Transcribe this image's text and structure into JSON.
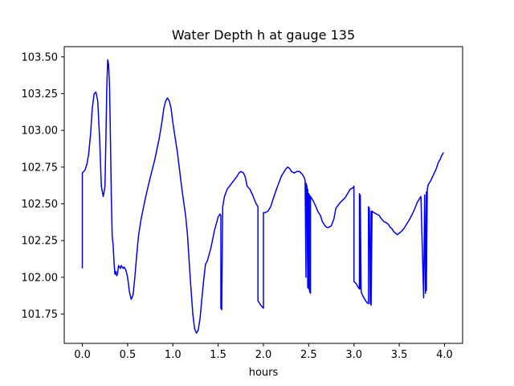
{
  "chart_data": {
    "type": "line",
    "title": "Water Depth h at gauge 135",
    "xlabel": "hours",
    "ylabel": "",
    "xlim": [
      -0.2,
      4.2
    ],
    "ylim": [
      101.55,
      103.57
    ],
    "xticks": [
      0.0,
      0.5,
      1.0,
      1.5,
      2.0,
      2.5,
      3.0,
      3.5,
      4.0
    ],
    "xtick_labels": [
      "0.0",
      "0.5",
      "1.0",
      "1.5",
      "2.0",
      "2.5",
      "3.0",
      "3.5",
      "4.0"
    ],
    "yticks": [
      101.75,
      102.0,
      102.25,
      102.5,
      102.75,
      103.0,
      103.25,
      103.5
    ],
    "ytick_labels": [
      "101.75",
      "102.00",
      "102.25",
      "102.50",
      "102.75",
      "103.00",
      "103.25",
      "103.50"
    ],
    "grid": false,
    "legend": "none",
    "colors": {
      "line": "#0000ff",
      "axes": "#000000",
      "background": "#ffffff"
    },
    "series": [
      {
        "x": [
          0.0,
          0.0,
          0.0,
          0.03,
          0.05,
          0.07,
          0.09,
          0.11,
          0.13,
          0.15,
          0.17,
          0.19,
          0.21,
          0.23,
          0.24,
          0.25,
          0.26,
          0.27,
          0.28,
          0.29,
          0.3,
          0.31,
          0.32,
          0.33,
          0.34,
          0.35,
          0.36,
          0.37,
          0.38,
          0.39,
          0.4,
          0.41,
          0.42,
          0.43,
          0.44,
          0.45,
          0.46,
          0.47,
          0.48,
          0.5,
          0.52,
          0.54,
          0.56,
          0.58,
          0.6,
          0.62,
          0.65,
          0.7,
          0.75,
          0.8,
          0.85,
          0.88,
          0.9,
          0.92,
          0.94,
          0.96,
          0.98,
          1.0,
          1.05,
          1.1,
          1.14,
          1.16,
          1.18,
          1.2,
          1.22,
          1.24,
          1.26,
          1.28,
          1.3,
          1.32,
          1.34,
          1.36,
          1.38,
          1.42,
          1.46,
          1.5,
          1.52,
          1.53,
          1.53,
          1.54,
          1.54,
          1.55,
          1.57,
          1.6,
          1.65,
          1.7,
          1.73,
          1.75,
          1.78,
          1.8,
          1.82,
          1.85,
          1.88,
          1.9,
          1.92,
          1.94,
          1.94,
          1.97,
          2.0,
          2.0,
          2.02,
          2.05,
          2.08,
          2.1,
          2.15,
          2.2,
          2.25,
          2.27,
          2.29,
          2.31,
          2.34,
          2.37,
          2.4,
          2.43,
          2.45,
          2.46,
          2.47,
          2.47,
          2.48,
          2.49,
          2.49,
          2.5,
          2.5,
          2.51,
          2.51,
          2.52,
          2.52,
          2.53,
          2.55,
          2.58,
          2.6,
          2.63,
          2.65,
          2.68,
          2.7,
          2.72,
          2.75,
          2.78,
          2.8,
          2.85,
          2.9,
          2.93,
          2.96,
          2.99,
          3.0,
          3.0,
          3.02,
          3.04,
          3.05,
          3.06,
          3.06,
          3.07,
          3.07,
          3.08,
          3.1,
          3.12,
          3.14,
          3.16,
          3.16,
          3.17,
          3.18,
          3.19,
          3.19,
          3.2,
          3.22,
          3.25,
          3.28,
          3.3,
          3.33,
          3.36,
          3.38,
          3.4,
          3.42,
          3.44,
          3.46,
          3.48,
          3.5,
          3.52,
          3.55,
          3.58,
          3.62,
          3.66,
          3.7,
          3.74,
          3.77,
          3.77,
          3.78,
          3.78,
          3.79,
          3.79,
          3.8,
          3.8,
          3.81,
          3.82,
          3.85,
          3.88,
          3.91,
          3.93,
          3.95,
          3.97,
          3.99
        ],
        "values": [
          102.06,
          102.35,
          102.71,
          102.73,
          102.77,
          102.84,
          102.97,
          103.15,
          103.25,
          103.26,
          103.2,
          102.95,
          102.62,
          102.55,
          102.58,
          102.62,
          102.95,
          103.3,
          103.48,
          103.45,
          103.3,
          102.95,
          102.55,
          102.28,
          102.22,
          102.1,
          102.02,
          102.04,
          102.01,
          102.03,
          102.08,
          102.07,
          102.06,
          102.08,
          102.07,
          102.06,
          102.07,
          102.06,
          102.05,
          102.0,
          101.9,
          101.85,
          101.88,
          102.0,
          102.15,
          102.28,
          102.4,
          102.55,
          102.68,
          102.8,
          102.95,
          103.06,
          103.15,
          103.2,
          103.22,
          103.2,
          103.15,
          103.05,
          102.85,
          102.6,
          102.42,
          102.3,
          102.1,
          101.92,
          101.75,
          101.65,
          101.62,
          101.64,
          101.72,
          101.85,
          101.98,
          102.09,
          102.11,
          102.2,
          102.32,
          102.41,
          102.43,
          102.42,
          101.79,
          101.78,
          101.83,
          102.48,
          102.55,
          102.6,
          102.64,
          102.68,
          102.71,
          102.72,
          102.71,
          102.68,
          102.62,
          102.6,
          102.56,
          102.53,
          102.5,
          102.48,
          101.84,
          101.81,
          101.79,
          102.44,
          102.44,
          102.45,
          102.48,
          102.52,
          102.61,
          102.69,
          102.74,
          102.75,
          102.74,
          102.72,
          102.71,
          102.72,
          102.72,
          102.7,
          102.68,
          102.66,
          102.0,
          102.64,
          102.62,
          101.93,
          102.6,
          101.92,
          102.57,
          101.9,
          102.56,
          101.89,
          102.55,
          102.54,
          102.52,
          102.48,
          102.45,
          102.42,
          102.38,
          102.35,
          102.34,
          102.34,
          102.35,
          102.4,
          102.47,
          102.51,
          102.54,
          102.57,
          102.6,
          102.61,
          102.62,
          101.97,
          101.96,
          101.94,
          101.93,
          101.92,
          102.57,
          101.92,
          102.56,
          101.9,
          101.87,
          101.85,
          101.83,
          101.82,
          102.48,
          102.47,
          101.82,
          102.45,
          101.81,
          102.45,
          102.44,
          102.43,
          102.42,
          102.4,
          102.38,
          102.37,
          102.36,
          102.34,
          102.33,
          102.31,
          102.3,
          102.29,
          102.3,
          102.31,
          102.33,
          102.36,
          102.4,
          102.45,
          102.51,
          102.55,
          101.86,
          101.87,
          102.55,
          102.56,
          101.89,
          101.9,
          102.58,
          101.91,
          102.6,
          102.63,
          102.66,
          102.7,
          102.74,
          102.78,
          102.8,
          102.83,
          102.85
        ]
      }
    ]
  }
}
